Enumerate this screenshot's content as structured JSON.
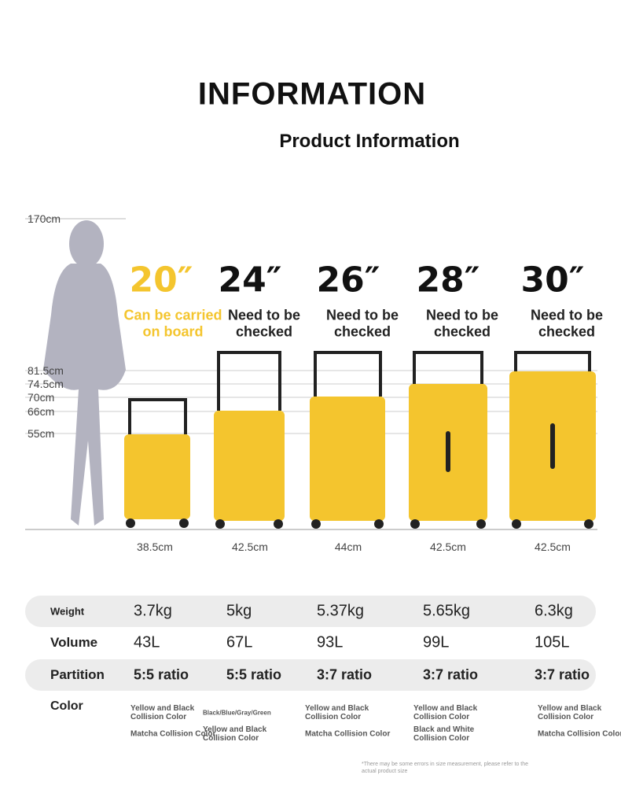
{
  "header": {
    "title": "INFORMATION",
    "subtitle": "Product Information"
  },
  "height_scale": [
    "170cm",
    "81.5cm",
    "74.5cm",
    "70cm",
    "66cm",
    "55cm"
  ],
  "sizes": [
    {
      "size": "20″",
      "note": [
        "Can be carried",
        "on board"
      ],
      "width": "38.5cm"
    },
    {
      "size": "24″",
      "note": [
        "Need to be",
        "checked"
      ],
      "width": "42.5cm"
    },
    {
      "size": "26″",
      "note": [
        "Need to be",
        "checked"
      ],
      "width": "44cm"
    },
    {
      "size": "28″",
      "note": [
        "Need to be",
        "checked"
      ],
      "width": "42.5cm"
    },
    {
      "size": "30″",
      "note": [
        "Need to be",
        "checked"
      ],
      "width": "42.5cm"
    }
  ],
  "specs": {
    "rows": [
      {
        "label": "Weight",
        "values": [
          "3.7kg",
          "5kg",
          "5.37kg",
          "5.65kg",
          "6.3kg"
        ]
      },
      {
        "label": "Volume",
        "values": [
          "43L",
          "67L",
          "93L",
          "99L",
          "105L"
        ]
      },
      {
        "label": "Partition",
        "values": [
          "5:5 ratio",
          "5:5 ratio",
          "3:7 ratio",
          "3:7 ratio",
          "3:7 ratio"
        ]
      }
    ]
  },
  "colors": {
    "label": "Color",
    "values": [
      [
        "Yellow and Black Collision Color",
        "Matcha Collision Color"
      ],
      [
        "Black/Blue/Gray/Green",
        "Yellow and Black Collision Color"
      ],
      [
        "Yellow and Black Collision Color",
        "Matcha Collision Color"
      ],
      [
        "Yellow and Black Collision Color",
        "Black and White Collision Color"
      ],
      [
        "Yellow and Black Collision Color",
        "Matcha Collision Color"
      ]
    ]
  },
  "footnote": "*There may be some errors in size measurement, please refer to the actual product size"
}
